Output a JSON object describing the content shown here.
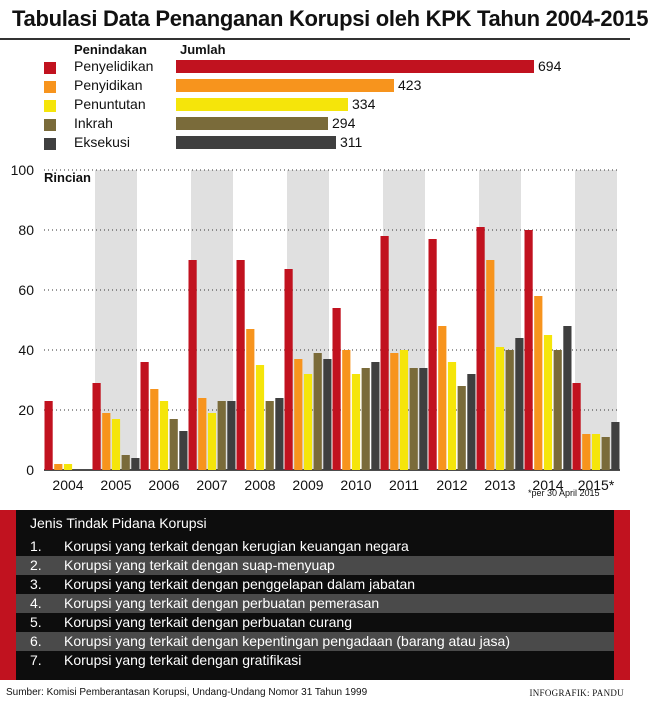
{
  "title": "Tabulasi Data Penanganan Korupsi oleh KPK Tahun 2004-2015",
  "colors": {
    "penyelidikan": "#c1121f",
    "penyidikan": "#f7941d",
    "penuntutan": "#f5e50a",
    "inkrah": "#7a6b3a",
    "eksekusi": "#3f3f3f",
    "band": "#e0e0e0"
  },
  "summary": {
    "header_category": "Penindakan",
    "header_value": "Jumlah",
    "items": [
      {
        "label": "Penyelidikan",
        "value": 694
      },
      {
        "label": "Penyidikan",
        "value": 423
      },
      {
        "label": "Penuntutan",
        "value": 334
      },
      {
        "label": "Inkrah",
        "value": 294
      },
      {
        "label": "Eksekusi",
        "value": 311
      }
    ]
  },
  "chart_data": {
    "type": "bar",
    "title": "Tabulasi Data Penanganan Korupsi oleh KPK Tahun 2004-2015",
    "ylabel": "Rincian",
    "ylim": [
      0,
      100
    ],
    "yticks": [
      0,
      20,
      40,
      60,
      80,
      100
    ],
    "categories": [
      "2004",
      "2005",
      "2006",
      "2007",
      "2008",
      "2009",
      "2010",
      "2011",
      "2012",
      "2013",
      "2014",
      "2015*"
    ],
    "series": [
      {
        "name": "Penyelidikan",
        "values": [
          23,
          29,
          36,
          70,
          70,
          67,
          54,
          78,
          77,
          81,
          80,
          29
        ]
      },
      {
        "name": "Penyidikan",
        "values": [
          2,
          19,
          27,
          24,
          47,
          37,
          40,
          39,
          48,
          70,
          58,
          12
        ]
      },
      {
        "name": "Penuntutan",
        "values": [
          2,
          17,
          23,
          19,
          35,
          32,
          32,
          40,
          36,
          41,
          45,
          12
        ]
      },
      {
        "name": "Inkrah",
        "values": [
          0,
          5,
          17,
          23,
          23,
          39,
          34,
          34,
          28,
          40,
          40,
          11
        ]
      },
      {
        "name": "Eksekusi",
        "values": [
          0,
          4,
          13,
          23,
          24,
          37,
          36,
          34,
          32,
          44,
          48,
          16
        ]
      }
    ],
    "note": "*per 30 April 2015"
  },
  "crimes": {
    "title": "Jenis Tindak Pidana Korupsi",
    "items": [
      {
        "num": "1.",
        "text": "Korupsi yang terkait dengan kerugian keuangan negara"
      },
      {
        "num": "2.",
        "text": "Korupsi yang terkait dengan suap-menyuap"
      },
      {
        "num": "3.",
        "text": "Korupsi yang terkait dengan penggelapan dalam jabatan"
      },
      {
        "num": "4.",
        "text": "Korupsi yang terkait dengan perbuatan pemerasan"
      },
      {
        "num": "5.",
        "text": "Korupsi yang terkait dengan perbuatan curang"
      },
      {
        "num": "6.",
        "text": "Korupsi yang terkait dengan kepentingan pengadaan (barang atau jasa)"
      },
      {
        "num": "7.",
        "text": "Korupsi yang terkait dengan gratifikasi"
      }
    ]
  },
  "source": "Sumber: Komisi Pemberantasan Korupsi, Undang-Undang Nomor 31 Tahun 1999",
  "credit": "INFOGRAFIK: PANDU"
}
